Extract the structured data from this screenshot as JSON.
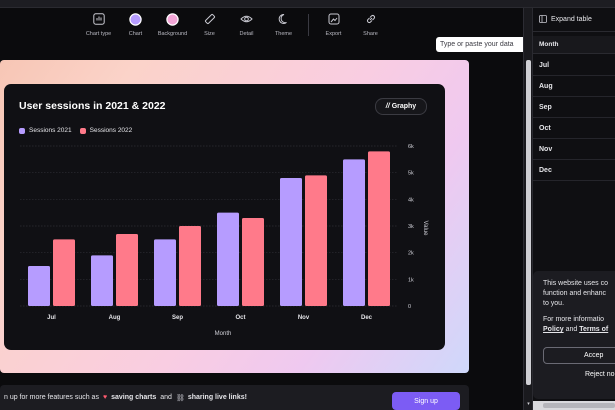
{
  "toolbar": {
    "items": [
      {
        "label": "Chart type",
        "icon": "chart-type-icon"
      },
      {
        "label": "Chart",
        "icon": "chart-color-icon"
      },
      {
        "label": "Background",
        "icon": "background-color-icon"
      },
      {
        "label": "Size",
        "icon": "ruler-icon"
      },
      {
        "label": "Detail",
        "icon": "eye-icon"
      },
      {
        "label": "Theme",
        "icon": "moon-icon"
      },
      {
        "label": "Export",
        "icon": "export-icon"
      },
      {
        "label": "Share",
        "icon": "link-icon"
      }
    ]
  },
  "data_input": {
    "placeholder": "Type or paste your data"
  },
  "card": {
    "title": "User sessions in 2021 & 2022",
    "brand": "Graphy"
  },
  "chart_data": {
    "type": "bar",
    "categories": [
      "Jul",
      "Aug",
      "Sep",
      "Oct",
      "Nov",
      "Dec"
    ],
    "series": [
      {
        "name": "Sessions 2021",
        "color": "#b69cff",
        "values": [
          1500,
          1900,
          2500,
          3500,
          4800,
          5500
        ]
      },
      {
        "name": "Sessions 2022",
        "color": "#ff7a8a",
        "values": [
          2500,
          2700,
          3000,
          3300,
          4900,
          5800
        ]
      }
    ],
    "yticks": [
      "0",
      "1k",
      "2k",
      "3k",
      "4k",
      "5k",
      "6k"
    ],
    "ylim": [
      0,
      6000
    ],
    "xlabel": "Month",
    "ylabel": "Value",
    "grid": true,
    "legend": "top-left"
  },
  "panel": {
    "expand_label": "Expand table",
    "column_header": "Month",
    "rows": [
      "Jul",
      "Aug",
      "Sep",
      "Oct",
      "Nov",
      "Dec"
    ]
  },
  "cookie": {
    "line1": "This website uses co",
    "line2": "function and enhanc",
    "line3": "to you.",
    "line4": "For more informatio",
    "policy": "Policy",
    "and": " and ",
    "terms": "Terms of",
    "accept": "Accep",
    "reject": "Reject no"
  },
  "promo": {
    "prefix": "n up for more features such as",
    "feature1": "saving charts",
    "and": "and",
    "feature2": "sharing live links!",
    "signup": "Sign up"
  }
}
